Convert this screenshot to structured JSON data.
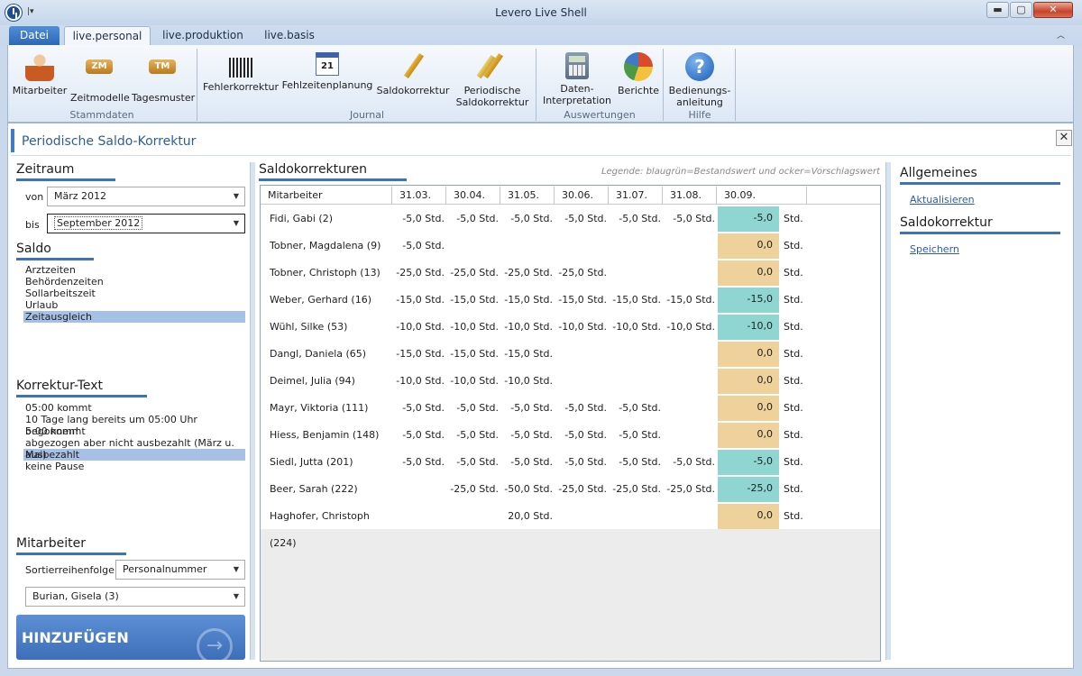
{
  "window": {
    "title": "Levero Live Shell",
    "min": "▬",
    "max": "▢",
    "close": "✕"
  },
  "tabs": [
    {
      "label": "Datei"
    },
    {
      "label": "live.personal"
    },
    {
      "label": "live.produktion"
    },
    {
      "label": "live.basis"
    }
  ],
  "ribbon": {
    "buttons": [
      {
        "label": "Mitarbeiter",
        "icon": "person-icon"
      },
      {
        "label": "Zeitmodelle",
        "icon": "zm-badge-icon",
        "badge": "ZM"
      },
      {
        "label": "Tagesmuster",
        "icon": "tm-badge-icon",
        "badge": "TM"
      },
      {
        "label": "Fehlerkorrektur",
        "icon": "barcode-icon"
      },
      {
        "label": "Fehlzeitenplanung",
        "icon": "calendar-icon",
        "badge": "21"
      },
      {
        "label": "Saldokorrektur",
        "icon": "pencil-icon"
      },
      {
        "label1": "Periodische",
        "label2": "Saldokorrektur",
        "icon": "pencils-icon"
      },
      {
        "label1": "Daten-",
        "label2": "Interpretation",
        "icon": "calculator-icon"
      },
      {
        "label": "Berichte",
        "icon": "pie-chart-icon"
      },
      {
        "label1": "Bedienungs-",
        "label2": "anleitung",
        "icon": "help-icon",
        "badge": "?"
      }
    ],
    "groups": [
      "Stammdaten",
      "Journal",
      "Auswertungen",
      "Hilfe"
    ]
  },
  "page": {
    "title": "Periodische Saldo-Korrektur",
    "close": "✕"
  },
  "left": {
    "zeitraum": {
      "title": "Zeitraum",
      "von_label": "von",
      "von_value": "März 2012",
      "bis_label": "bis",
      "bis_value": "September 2012"
    },
    "saldo": {
      "title": "Saldo",
      "items": [
        "Arztzeiten",
        "Behördenzeiten",
        "Sollarbeitszeit",
        "Urlaub",
        "Zeitausgleich"
      ],
      "selected": 4
    },
    "korrektur": {
      "title": "Korrektur-Text",
      "items": [
        "05:00 kommt",
        "10 Tage lang bereits um 05:00 Uhr begonnen!",
        "5:00 kommt",
        "abgezogen  aber nicht ausbezahlt (März u. Mai)",
        "ausbezahlt",
        "keine Pause"
      ],
      "selected": 4
    },
    "mitarbeiter": {
      "title": "Mitarbeiter",
      "sort_label": "Sortierreihenfolge",
      "sort_value": "Personalnummer",
      "employee_value": "Burian, Gisela (3)"
    },
    "add_button": "HINZUFÜGEN"
  },
  "main": {
    "title": "Saldokorrekturen",
    "legend": "Legende: blaugrün=Bestandswert und ocker=Vorschlagswert",
    "columns": [
      "Mitarbeiter",
      "31.03.",
      "30.04.",
      "31.05.",
      "30.06.",
      "31.07.",
      "31.08.",
      "30.09."
    ],
    "unit": "Std.",
    "colors": {
      "existing": "#8fd6d2",
      "proposal": "#efd29b"
    },
    "rows": [
      {
        "name": "Fidi, Gabi (2)",
        "values": [
          "-5,0 Std.",
          "-5,0 Std.",
          "-5,0 Std.",
          "-5,0 Std.",
          "-5,0 Std.",
          "-5,0 Std."
        ],
        "final": "-5,0",
        "kind": "existing"
      },
      {
        "name": "Tobner, Magdalena (9)",
        "values": [
          "-5,0 Std.",
          "",
          "",
          "",
          "",
          ""
        ],
        "final": "0,0",
        "kind": "proposal"
      },
      {
        "name": "Tobner, Christoph (13)",
        "values": [
          "-25,0 Std.",
          "-25,0 Std.",
          "-25,0 Std.",
          "-25,0 Std.",
          "",
          ""
        ],
        "final": "0,0",
        "kind": "proposal"
      },
      {
        "name": "Weber, Gerhard (16)",
        "values": [
          "-15,0 Std.",
          "-15,0 Std.",
          "-15,0 Std.",
          "-15,0 Std.",
          "-15,0 Std.",
          "-15,0 Std."
        ],
        "final": "-15,0",
        "kind": "existing"
      },
      {
        "name": "Wühl, Silke (53)",
        "values": [
          "-10,0 Std.",
          "-10,0 Std.",
          "-10,0 Std.",
          "-10,0 Std.",
          "-10,0 Std.",
          "-10,0 Std."
        ],
        "final": "-10,0",
        "kind": "existing"
      },
      {
        "name": "Dangl, Daniela (65)",
        "values": [
          "-15,0 Std.",
          "-15,0 Std.",
          "-15,0 Std.",
          "",
          "",
          ""
        ],
        "final": "0,0",
        "kind": "proposal"
      },
      {
        "name": "Deimel, Julia (94)",
        "values": [
          "-10,0 Std.",
          "-10,0 Std.",
          "-10,0 Std.",
          "",
          "",
          ""
        ],
        "final": "0,0",
        "kind": "proposal"
      },
      {
        "name": "Mayr, Viktoria (111)",
        "values": [
          "-5,0 Std.",
          "-5,0 Std.",
          "-5,0 Std.",
          "-5,0 Std.",
          "-5,0 Std.",
          ""
        ],
        "final": "0,0",
        "kind": "proposal"
      },
      {
        "name": "Hiess, Benjamin (148)",
        "values": [
          "-5,0 Std.",
          "-5,0 Std.",
          "-5,0 Std.",
          "-5,0 Std.",
          "-5,0 Std.",
          ""
        ],
        "final": "0,0",
        "kind": "proposal"
      },
      {
        "name": "Siedl, Jutta (201)",
        "values": [
          "-5,0 Std.",
          "-5,0 Std.",
          "-5,0 Std.",
          "-5,0 Std.",
          "-5,0 Std.",
          "-5,0 Std."
        ],
        "final": "-5,0",
        "kind": "existing"
      },
      {
        "name": "Beer, Sarah (222)",
        "values": [
          "",
          "-25,0 Std.",
          "-50,0 Std.",
          "-25,0 Std.",
          "-25,0 Std.",
          "-25,0 Std."
        ],
        "final": "-25,0",
        "kind": "existing"
      },
      {
        "name": "Haghofer, Christoph (224)",
        "values": [
          "",
          "",
          "20,0 Std.",
          "",
          "",
          ""
        ],
        "final": "0,0",
        "kind": "proposal"
      }
    ]
  },
  "right": {
    "allgemeines": {
      "title": "Allgemeines",
      "link": "Aktualisieren"
    },
    "saldokorrektur": {
      "title": "Saldokorrektur",
      "link": "Speichern"
    }
  }
}
